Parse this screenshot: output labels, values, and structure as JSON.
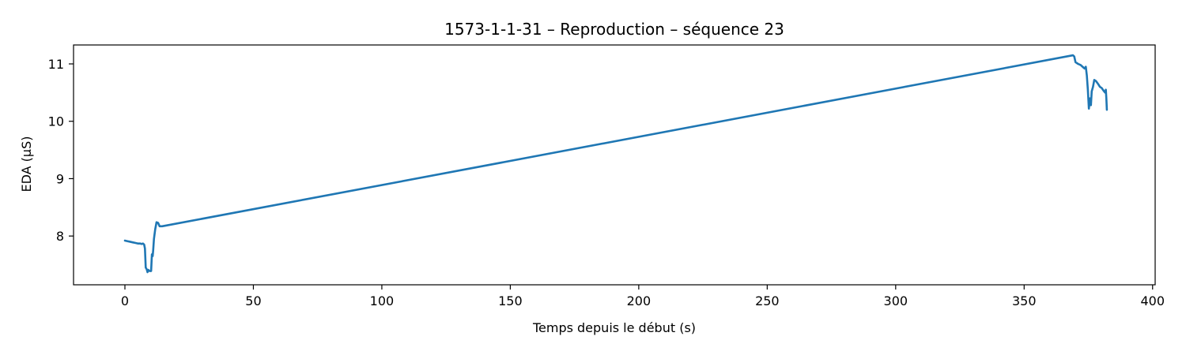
{
  "chart_data": {
    "type": "line",
    "title": "1573-1-1-31 – Reproduction – séquence 23",
    "xlabel": "Temps depuis le début (s)",
    "ylabel": "EDA (µS)",
    "xlim": [
      -20,
      401
    ],
    "ylim": [
      7.15,
      11.33
    ],
    "xticks": [
      0,
      50,
      100,
      150,
      200,
      250,
      300,
      350,
      400
    ],
    "yticks": [
      8,
      9,
      10,
      11
    ],
    "grid": false,
    "series": [
      {
        "color": "#1f77b4",
        "points": [
          [
            0,
            7.92
          ],
          [
            1,
            7.91
          ],
          [
            2,
            7.9
          ],
          [
            3,
            7.89
          ],
          [
            4,
            7.88
          ],
          [
            5,
            7.87
          ],
          [
            6,
            7.87
          ],
          [
            6.5,
            7.86
          ],
          [
            7,
            7.87
          ],
          [
            7.5,
            7.85
          ],
          [
            7.8,
            7.78
          ],
          [
            8.1,
            7.45
          ],
          [
            8.5,
            7.42
          ],
          [
            8.8,
            7.37
          ],
          [
            9.1,
            7.41
          ],
          [
            9.6,
            7.39
          ],
          [
            10.2,
            7.39
          ],
          [
            10.5,
            7.68
          ],
          [
            10.8,
            7.65
          ],
          [
            11.0,
            7.75
          ],
          [
            11.3,
            7.95
          ],
          [
            11.8,
            8.12
          ],
          [
            12.3,
            8.24
          ],
          [
            12.9,
            8.23
          ],
          [
            13.5,
            8.17
          ],
          [
            14.5,
            8.17
          ],
          [
            369.0,
            11.15
          ],
          [
            369.5,
            11.13
          ],
          [
            370.0,
            11.03
          ],
          [
            371.0,
            11.0
          ],
          [
            372.0,
            10.98
          ],
          [
            373.0,
            10.94
          ],
          [
            373.5,
            10.92
          ],
          [
            374.0,
            10.95
          ],
          [
            374.4,
            10.8
          ],
          [
            374.8,
            10.55
          ],
          [
            375.2,
            10.22
          ],
          [
            375.6,
            10.4
          ],
          [
            376.0,
            10.28
          ],
          [
            376.3,
            10.52
          ],
          [
            376.8,
            10.6
          ],
          [
            377.3,
            10.72
          ],
          [
            378.0,
            10.7
          ],
          [
            378.8,
            10.65
          ],
          [
            379.5,
            10.6
          ],
          [
            380.2,
            10.58
          ],
          [
            380.8,
            10.54
          ],
          [
            381.5,
            10.5
          ],
          [
            381.8,
            10.55
          ],
          [
            382.0,
            10.4
          ],
          [
            382.2,
            10.2
          ]
        ]
      }
    ]
  }
}
